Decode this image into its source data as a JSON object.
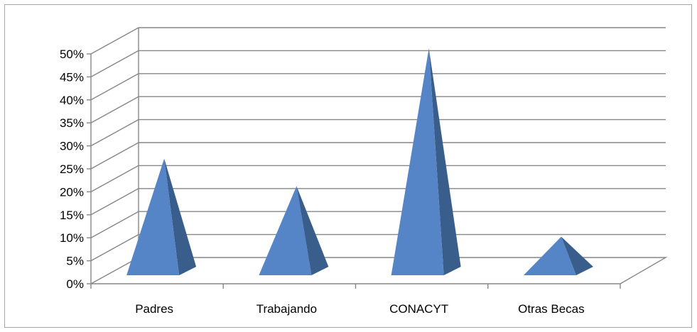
{
  "chart_data": {
    "type": "bar",
    "style": "3d-pyramid",
    "categories": [
      "Padres",
      "Trabajando",
      "CONACYT",
      "Otras Becas"
    ],
    "values": [
      26,
      20,
      50,
      9
    ],
    "ylim": [
      0,
      50
    ],
    "yticks": [
      "0%",
      "5%",
      "10%",
      "15%",
      "20%",
      "25%",
      "30%",
      "35%",
      "40%",
      "45%",
      "50%"
    ],
    "ystep": 5,
    "grid": true,
    "legend": "none",
    "title": "",
    "xlabel": "",
    "ylabel": "",
    "colors": {
      "front": "#5585c6",
      "side": "#3a5e8c",
      "grid": "#868686",
      "axis": "#868686"
    }
  }
}
